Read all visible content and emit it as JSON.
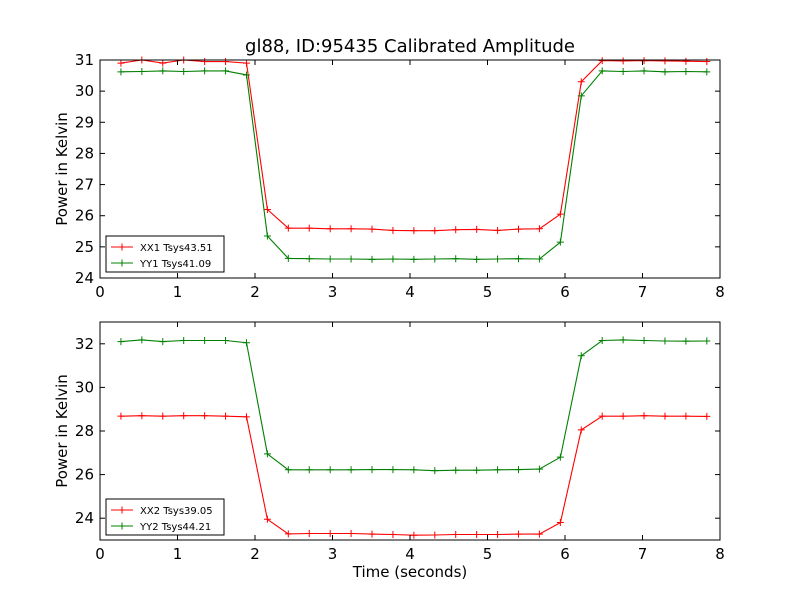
{
  "chart_data": [
    {
      "type": "line",
      "title": "gl88, ID:95435 Calibrated Amplitude",
      "xlabel": "",
      "ylabel": "Power in Kelvin",
      "xlim": [
        0,
        8
      ],
      "ylim": [
        24,
        31
      ],
      "xticks": [
        0,
        1,
        2,
        3,
        4,
        5,
        6,
        7,
        8
      ],
      "yticks": [
        24,
        25,
        26,
        27,
        28,
        29,
        30,
        31
      ],
      "grid": false,
      "legend": "lower-left",
      "x": [
        0.27,
        0.54,
        0.81,
        1.08,
        1.35,
        1.62,
        1.89,
        2.16,
        2.43,
        2.7,
        2.97,
        3.24,
        3.51,
        3.78,
        4.05,
        4.32,
        4.59,
        4.86,
        5.13,
        5.4,
        5.67,
        5.94,
        6.21,
        6.48,
        6.75,
        7.02,
        7.29,
        7.56,
        7.83
      ],
      "series": [
        {
          "name": "XX1 Tsys43.51",
          "color": "#ff0000",
          "values": [
            30.9,
            31.0,
            30.9,
            31.0,
            30.95,
            30.95,
            30.9,
            26.2,
            25.6,
            25.6,
            25.58,
            25.58,
            25.57,
            25.53,
            25.52,
            25.52,
            25.55,
            25.56,
            25.53,
            25.57,
            25.58,
            26.05,
            30.3,
            30.98,
            30.97,
            30.98,
            30.97,
            30.96,
            30.95
          ]
        },
        {
          "name": "YY1 Tsys41.09",
          "color": "#008000",
          "values": [
            30.62,
            30.63,
            30.65,
            30.63,
            30.65,
            30.65,
            30.52,
            25.35,
            24.63,
            24.62,
            24.61,
            24.61,
            24.6,
            24.61,
            24.6,
            24.61,
            24.62,
            24.6,
            24.61,
            24.62,
            24.61,
            25.15,
            29.85,
            30.65,
            30.63,
            30.65,
            30.62,
            30.63,
            30.62
          ]
        }
      ]
    },
    {
      "type": "line",
      "title": "",
      "xlabel": "Time (seconds)",
      "ylabel": "Power in Kelvin",
      "xlim": [
        0,
        8
      ],
      "ylim": [
        23,
        33
      ],
      "xticks": [
        0,
        1,
        2,
        3,
        4,
        5,
        6,
        7,
        8
      ],
      "yticks": [
        24,
        26,
        28,
        30,
        32
      ],
      "grid": false,
      "legend": "lower-left",
      "x": [
        0.27,
        0.54,
        0.81,
        1.08,
        1.35,
        1.62,
        1.89,
        2.16,
        2.43,
        2.7,
        2.97,
        3.24,
        3.51,
        3.78,
        4.05,
        4.32,
        4.59,
        4.86,
        5.13,
        5.4,
        5.67,
        5.94,
        6.21,
        6.48,
        6.75,
        7.02,
        7.29,
        7.56,
        7.83
      ],
      "series": [
        {
          "name": "XX2 Tsys39.05",
          "color": "#ff0000",
          "values": [
            28.68,
            28.7,
            28.68,
            28.7,
            28.7,
            28.68,
            28.65,
            23.95,
            23.28,
            23.3,
            23.3,
            23.3,
            23.27,
            23.25,
            23.22,
            23.23,
            23.25,
            23.25,
            23.25,
            23.27,
            23.27,
            23.8,
            28.05,
            28.68,
            28.68,
            28.7,
            28.68,
            28.68,
            28.67
          ]
        },
        {
          "name": "YY2 Tsys44.21",
          "color": "#008000",
          "values": [
            32.1,
            32.18,
            32.1,
            32.15,
            32.15,
            32.15,
            32.05,
            26.95,
            26.22,
            26.22,
            26.22,
            26.22,
            26.23,
            26.23,
            26.22,
            26.18,
            26.2,
            26.2,
            26.22,
            26.23,
            26.25,
            26.8,
            31.45,
            32.15,
            32.18,
            32.15,
            32.13,
            32.12,
            32.13
          ]
        }
      ]
    }
  ]
}
